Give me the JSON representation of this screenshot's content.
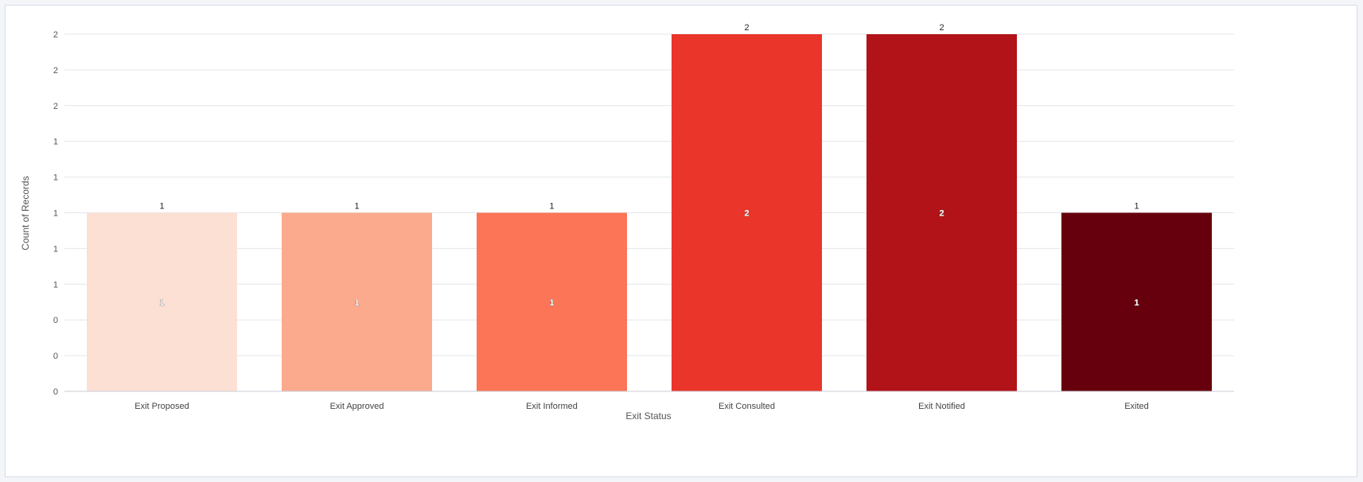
{
  "chart_data": {
    "type": "bar",
    "xlabel": "Exit Status",
    "ylabel": "Count of Records",
    "categories": [
      "Exit Proposed",
      "Exit Approved",
      "Exit Informed",
      "Exit Consulted",
      "Exit Notified",
      "Exited"
    ],
    "values": [
      1,
      1,
      1,
      2,
      2,
      1
    ],
    "top_labels": [
      "1",
      "1",
      "1",
      "2",
      "2",
      "1"
    ],
    "inner_labels": [
      "1",
      "1",
      "1",
      "2",
      "2",
      "1"
    ],
    "colors": [
      "#fde0d4",
      "#fcaa8d",
      "#fb7556",
      "#e9352a",
      "#b11318",
      "#67000d"
    ],
    "ylim": [
      0,
      2
    ],
    "yticks": [
      0,
      0.2,
      0.4,
      0.6,
      0.8,
      1,
      1.2,
      1.4,
      1.6,
      1.8,
      2
    ],
    "ytick_labels": [
      "0",
      "0",
      "0",
      "1",
      "1",
      "1",
      "1",
      "1",
      "2",
      "2",
      "2"
    ],
    "grid": true,
    "legend": "none"
  }
}
